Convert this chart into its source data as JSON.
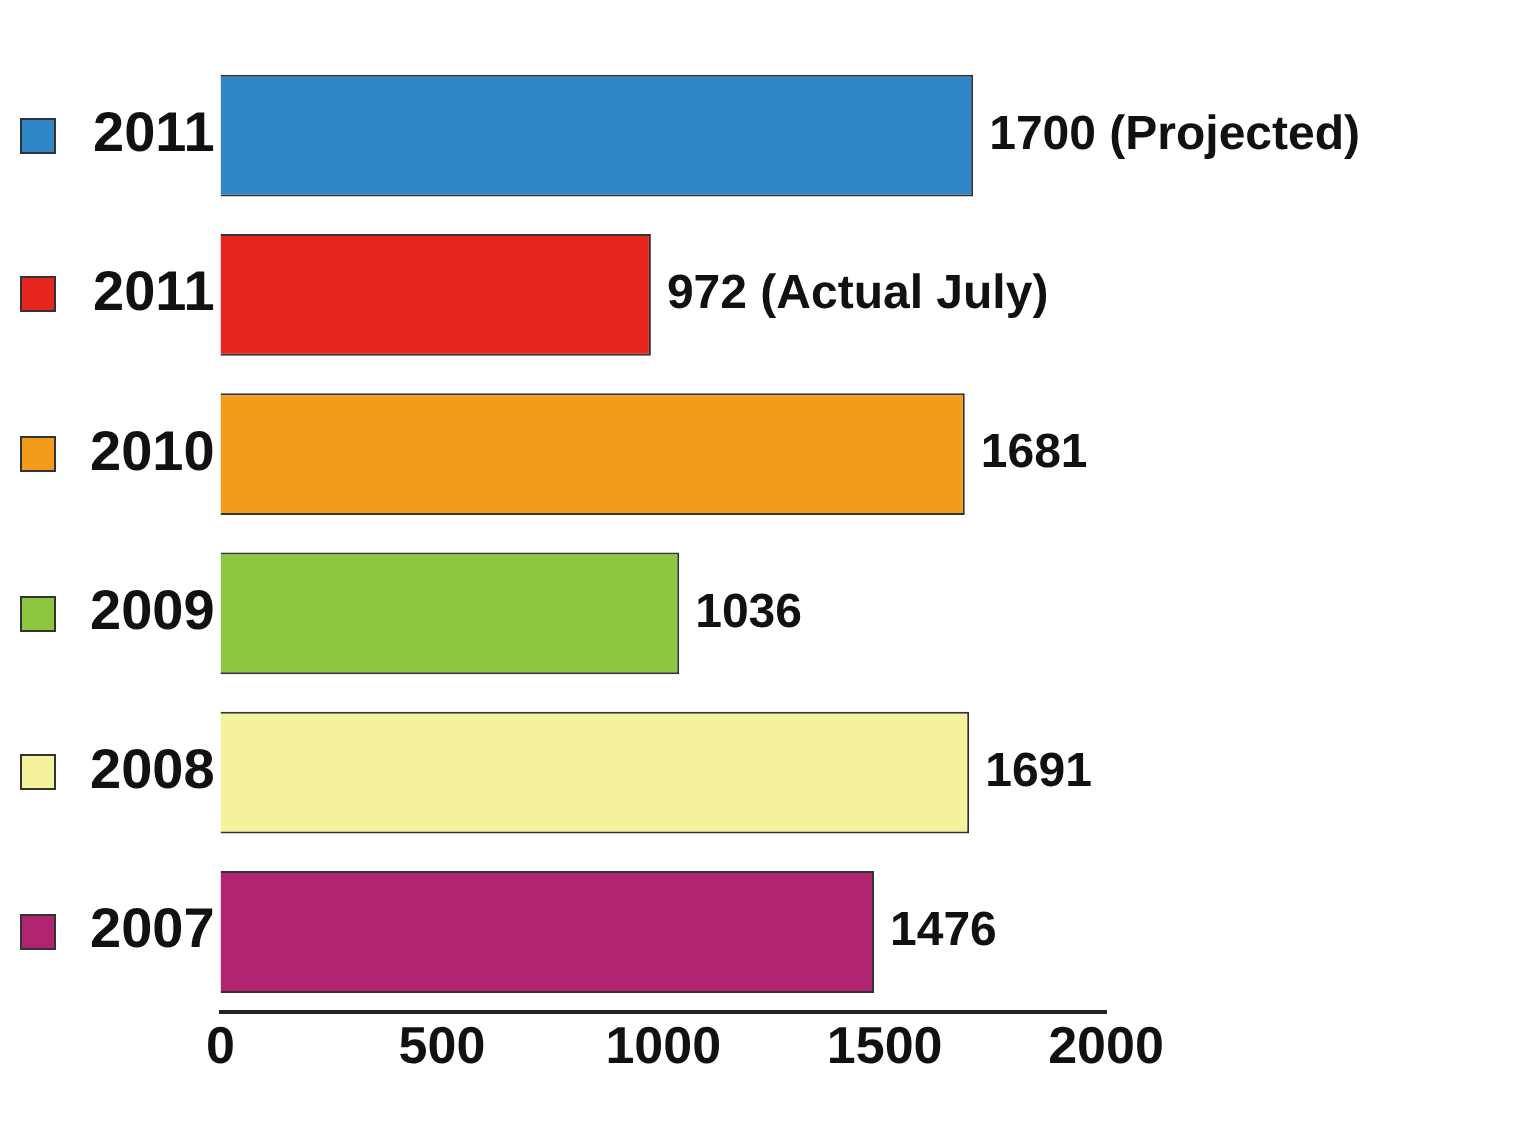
{
  "chart_data": {
    "type": "bar",
    "orientation": "horizontal",
    "categories": [
      "2011",
      "2011",
      "2010",
      "2009",
      "2008",
      "2007"
    ],
    "values": [
      1700,
      972,
      1681,
      1036,
      1691,
      1476
    ],
    "colors": [
      "#2f86c9",
      "#e6261d",
      "#f39b1b",
      "#8dc63f",
      "#f4f29c",
      "#b1246f"
    ],
    "value_labels": [
      "1700 (Projected)",
      "972 (Actual July)",
      "1681",
      "1036",
      "1691",
      "1476"
    ],
    "xlim": [
      0,
      2000
    ],
    "xticks": [
      0,
      500,
      1000,
      1500,
      2000
    ],
    "grid": false,
    "legend": false
  }
}
